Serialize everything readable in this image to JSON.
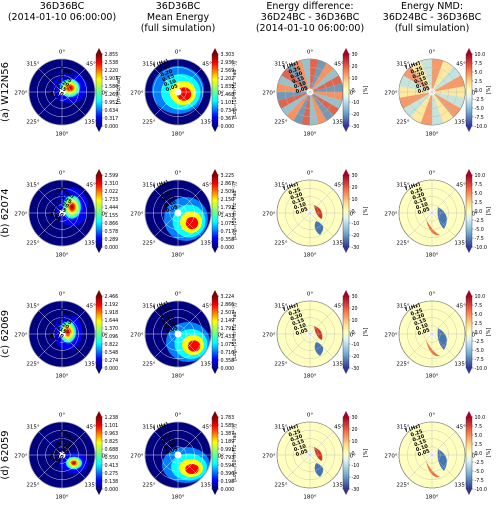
{
  "figure": {
    "columns": [
      {
        "title_lines": [
          "36D36BC",
          "(2014-01-10 06:00:00)"
        ],
        "kind": "energy"
      },
      {
        "title_lines": [
          "36D36BC",
          "Mean Energy",
          "(full simulation)"
        ],
        "kind": "energy"
      },
      {
        "title_lines": [
          "Energy difference:",
          "36D24BC - 36D36BC",
          "(2014-01-10 06:00:00)"
        ],
        "kind": "diff"
      },
      {
        "title_lines": [
          "Energy NMD:",
          "36D24BC - 36D36BC",
          "(full simulation)"
        ],
        "kind": "nmd"
      }
    ],
    "rows": [
      {
        "label": "(a) W12N56",
        "energy_ticks": [
          "2.855",
          "2.538",
          "2.220",
          "1.903",
          "1.586",
          "1.269",
          "0.952",
          "0.634",
          "0.317",
          "0.000"
        ],
        "mean_ticks": [
          "3.303",
          "2.936",
          "2.569",
          "2.202",
          "1.835",
          "1.468",
          "1.101",
          "0.734",
          "0.367",
          "0.000"
        ]
      },
      {
        "label": "(b) 62074",
        "energy_ticks": [
          "2.599",
          "2.310",
          "2.022",
          "1.733",
          "1.444",
          "1.155",
          "0.866",
          "0.578",
          "0.289",
          "0.000"
        ],
        "mean_ticks": [
          "3.225",
          "2.867",
          "2.509",
          "2.150",
          "1.792",
          "1.433",
          "1.075",
          "0.717",
          "0.358",
          "0.000"
        ]
      },
      {
        "label": "(c) 62069",
        "energy_ticks": [
          "2.466",
          "2.192",
          "1.918",
          "1.644",
          "1.370",
          "1.096",
          "0.822",
          "0.548",
          "0.274",
          "0.000"
        ],
        "mean_ticks": [
          "3.224",
          "2.866",
          "2.507",
          "2.149",
          "1.791",
          "1.433",
          "1.075",
          "0.716",
          "0.358",
          "0.000"
        ]
      },
      {
        "label": "(d) 62059",
        "energy_ticks": [
          "1.238",
          "1.101",
          "0.963",
          "0.825",
          "0.688",
          "0.550",
          "0.413",
          "0.275",
          "0.138",
          "0.000"
        ],
        "mean_ticks": [
          "1.783",
          "1.585",
          "1.387",
          "1.189",
          "0.991",
          "0.793",
          "0.594",
          "0.396",
          "0.198",
          "0.000"
        ]
      }
    ],
    "diff_ticks": [
      "30",
      "20",
      "10",
      "0",
      "-10",
      "-20",
      "-30"
    ],
    "nmd_ticks": [
      "10.0",
      "7.5",
      "5.0",
      "2.5",
      "0.0",
      "-2.5",
      "-5.0",
      "-7.5",
      "-10.0"
    ],
    "direction_labels": [
      "0°",
      "45°",
      "90°",
      "135°",
      "180°",
      "225°",
      "270°",
      "315°"
    ],
    "freq_labels": [
      "0.05",
      "0.10",
      "0.15",
      "0.20",
      "0.25"
    ],
    "freq_axis_label": "f (Hz)",
    "energy_cbar_label": "[m²/Hz/rad]",
    "mean_cbar_label": "[Log₁₀(10⁶m²Hz⁻¹rad⁻¹)]",
    "pct_label": "[%]",
    "colors": {
      "jet": [
        "#00007f",
        "#0000ff",
        "#007fff",
        "#00ffff",
        "#7fff7f",
        "#ffff00",
        "#ff7f00",
        "#ff0000",
        "#7f0000"
      ],
      "rdylbu": [
        "#313695",
        "#4575b4",
        "#74add1",
        "#abd9e9",
        "#e0f3f8",
        "#ffffbf",
        "#fee090",
        "#fdae61",
        "#f46d43",
        "#d73027",
        "#a50026"
      ]
    }
  }
}
